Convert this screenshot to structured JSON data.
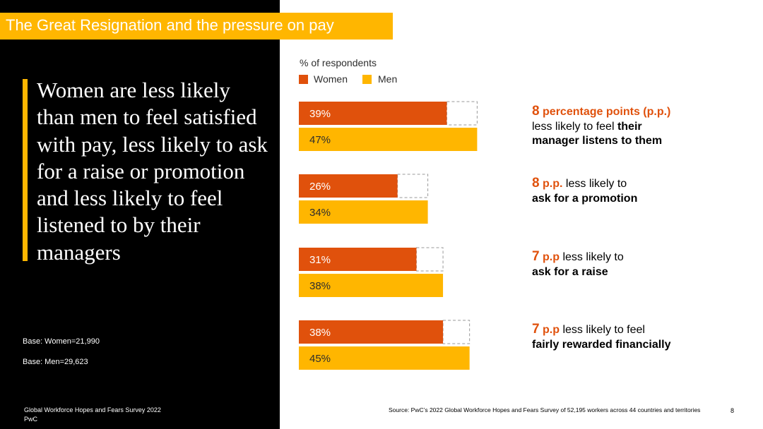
{
  "title": "The Great Resignation and the pressure on pay",
  "headline": "Women are less likely than men to feel satisfied with pay, less likely to ask for a raise or promotion and less likely to feel listened to by their managers",
  "base_women": "Base: Women=21,990",
  "base_men": "Base: Men=29,623",
  "footer_survey": "Global Workforce Hopes and Fears Survey 2022",
  "footer_org": "PwC",
  "source": "Source: PwC’s 2022 Global Workforce Hopes and Fears Survey of 52,195 workers across 44 countries and territories",
  "page_number": "8",
  "colors": {
    "women": "#E0510C",
    "men": "#FFB600",
    "accent": "#FFB600",
    "gap_border": "#9a9a9a"
  },
  "annotations": [
    {
      "num": "8",
      "unit": "percentage points (p.p.)",
      "line1_rest": "",
      "line2_plain": "less likely to feel ",
      "line2_bold": "their",
      "line3_bold": "manager listens to them"
    },
    {
      "num": "8",
      "unit": "p.p.",
      "line1_rest": " less likely to",
      "line2_plain": "",
      "line2_bold": "ask for a promotion",
      "line3_bold": ""
    },
    {
      "num": "7",
      "unit": "p.p",
      "line1_rest": " less likely to",
      "line2_plain": "",
      "line2_bold": "ask for a raise",
      "line3_bold": ""
    },
    {
      "num": "7",
      "unit": "p.p",
      "line1_rest": " less likely to feel",
      "line2_plain": "",
      "line2_bold": "fairly rewarded financially",
      "line3_bold": ""
    }
  ],
  "chart_data": {
    "type": "bar",
    "orientation": "horizontal",
    "ylabel": "% of respondents",
    "legend": [
      "Women",
      "Men"
    ],
    "legend_position": "top-left",
    "categories": [
      "manager listens to them",
      "ask for a promotion",
      "ask for a raise",
      "fairly rewarded financially"
    ],
    "series": [
      {
        "name": "Women",
        "values": [
          39,
          26,
          31,
          38
        ],
        "labels": [
          "39%",
          "26%",
          "31%",
          "38%"
        ]
      },
      {
        "name": "Men",
        "values": [
          47,
          34,
          38,
          45
        ],
        "labels": [
          "47%",
          "34%",
          "38%",
          "45%"
        ]
      }
    ]
  }
}
